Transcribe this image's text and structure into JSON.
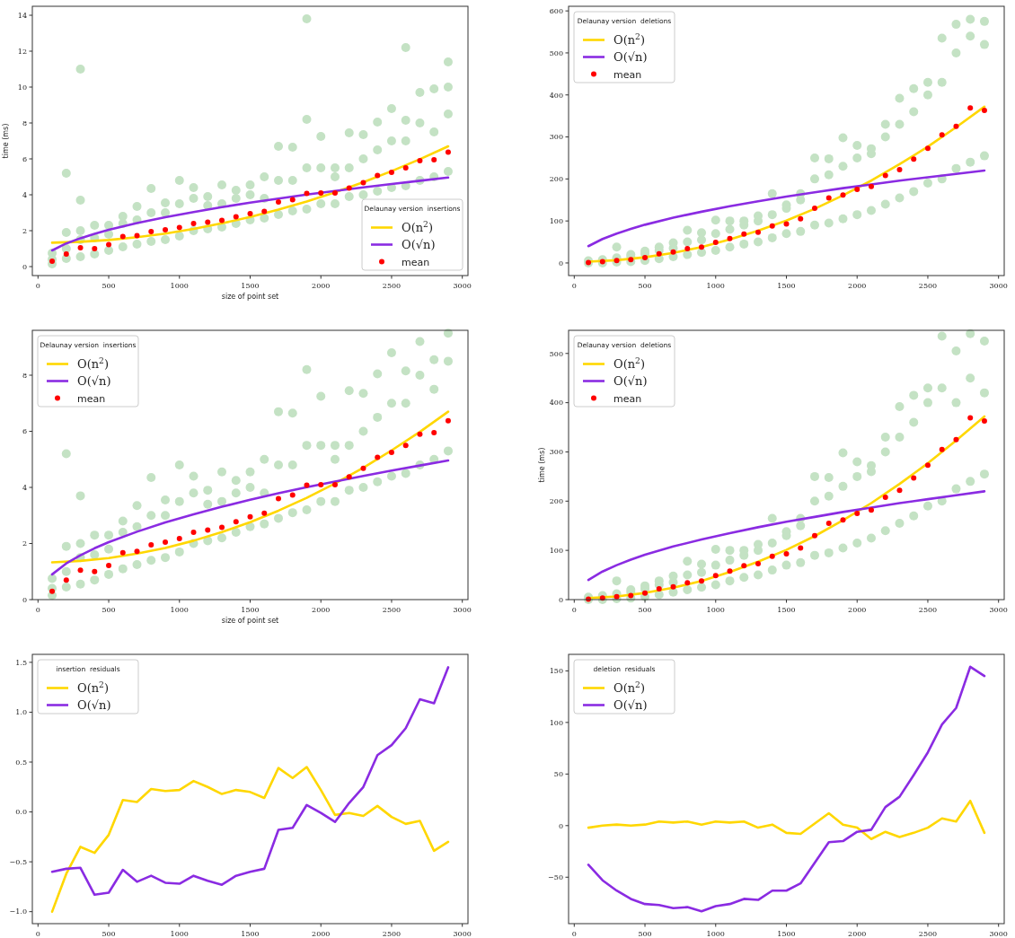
{
  "chart_data": [
    {
      "type": "scatter",
      "ylabel": "time (ms)",
      "xlabel": "size of point set",
      "legend_title": "Delaunay version  insertions",
      "legend": "bottom right",
      "xlim": [
        -40,
        3040
      ],
      "xticks": [
        0,
        500,
        1000,
        1500,
        2000,
        2500,
        3000
      ],
      "ylim": [
        -0.5,
        14.5
      ],
      "yticks": [
        0,
        2,
        4,
        6,
        8,
        10,
        12,
        14
      ],
      "series": [
        {
          "type": "scatter",
          "color": "#c4e2c4",
          "x": [
            100,
            100,
            100,
            200,
            200,
            200,
            200,
            300,
            300,
            300,
            300,
            300,
            400,
            400,
            400,
            500,
            500,
            500,
            600,
            600,
            600,
            700,
            700,
            700,
            800,
            800,
            800,
            900,
            900,
            900,
            1000,
            1000,
            1000,
            1100,
            1100,
            1100,
            1200,
            1200,
            1200,
            1300,
            1300,
            1300,
            1400,
            1400,
            1400,
            1500,
            1500,
            1500,
            1600,
            1600,
            1600,
            1700,
            1700,
            1700,
            1800,
            1800,
            1800,
            1900,
            1900,
            1900,
            1900,
            2000,
            2000,
            2000,
            2100,
            2100,
            2100,
            2200,
            2200,
            2200,
            2300,
            2300,
            2300,
            2400,
            2400,
            2400,
            2500,
            2500,
            2500,
            2600,
            2600,
            2600,
            2600,
            2700,
            2700,
            2700,
            2800,
            2800,
            2800,
            2900,
            2900,
            2900,
            2900
          ],
          "values": [
            0.15,
            0.4,
            0.75,
            0.45,
            1.0,
            1.9,
            5.2,
            0.55,
            1.5,
            2.0,
            3.7,
            11.0,
            0.7,
            1.6,
            2.3,
            0.9,
            1.8,
            2.3,
            1.1,
            2.4,
            2.8,
            1.25,
            2.6,
            3.35,
            1.4,
            3.0,
            4.35,
            1.5,
            3.0,
            3.55,
            1.7,
            3.5,
            4.8,
            2.0,
            3.8,
            4.4,
            2.1,
            3.4,
            3.9,
            2.2,
            3.5,
            4.55,
            2.4,
            3.8,
            4.25,
            2.6,
            4.0,
            4.55,
            2.7,
            3.8,
            5.0,
            2.9,
            4.8,
            6.7,
            3.1,
            4.8,
            6.65,
            3.2,
            5.5,
            8.2,
            13.8,
            3.5,
            5.5,
            7.25,
            3.5,
            5.0,
            5.5,
            3.9,
            5.5,
            7.45,
            4.0,
            6.0,
            7.35,
            4.2,
            6.5,
            8.05,
            4.4,
            7.0,
            8.8,
            4.5,
            7.0,
            8.15,
            12.2,
            4.8,
            8.0,
            9.7,
            5.0,
            7.5,
            9.9,
            5.3,
            8.5,
            10.0,
            11.4
          ]
        },
        {
          "type": "line",
          "name": "O(n$^{2}$)",
          "color": "#ffd700",
          "x": [
            100,
            300,
            500,
            700,
            900,
            1100,
            1300,
            1500,
            1700,
            1900,
            2100,
            2300,
            2500,
            2700,
            2900
          ],
          "values": [
            1.33,
            1.38,
            1.48,
            1.64,
            1.84,
            2.1,
            2.41,
            2.76,
            3.17,
            3.63,
            4.14,
            4.7,
            5.32,
            5.98,
            6.7
          ]
        },
        {
          "type": "line",
          "name": "O(√n)",
          "color": "#8a2be2",
          "x": [
            100,
            200,
            300,
            400,
            500,
            700,
            900,
            1100,
            1300,
            1500,
            1700,
            1900,
            2100,
            2300,
            2500,
            2700,
            2900
          ],
          "values": [
            0.9,
            1.29,
            1.58,
            1.83,
            2.05,
            2.42,
            2.75,
            3.04,
            3.31,
            3.56,
            3.79,
            4.01,
            4.21,
            4.41,
            4.6,
            4.78,
            4.96
          ]
        },
        {
          "type": "scatter",
          "name": "mean",
          "color": "#ff0000",
          "x": [
            100,
            200,
            300,
            400,
            500,
            600,
            700,
            800,
            900,
            1000,
            1100,
            1200,
            1300,
            1400,
            1500,
            1600,
            1700,
            1800,
            1900,
            2000,
            2100,
            2200,
            2300,
            2400,
            2500,
            2600,
            2700,
            2800,
            2900
          ],
          "values": [
            0.3,
            0.7,
            1.05,
            1.0,
            1.22,
            1.67,
            1.72,
            1.95,
            2.05,
            2.18,
            2.4,
            2.48,
            2.58,
            2.78,
            2.95,
            3.08,
            3.6,
            3.73,
            4.08,
            4.1,
            4.1,
            4.38,
            4.68,
            5.07,
            5.25,
            5.5,
            5.9,
            5.95,
            6.38
          ]
        }
      ]
    },
    {
      "type": "scatter",
      "legend_title": "Delaunay version  deletions",
      "legend": "top left",
      "xlim": [
        -40,
        3040
      ],
      "xticks": [
        0,
        500,
        1000,
        1500,
        2000,
        2500,
        3000
      ],
      "ylim": [
        -30,
        611
      ],
      "yticks": [
        0,
        100,
        200,
        300,
        400,
        500,
        600
      ],
      "series": [
        {
          "type": "scatter",
          "color": "#c4e2c4",
          "x": [
            100,
            100,
            200,
            200,
            300,
            300,
            300,
            400,
            400,
            400,
            500,
            500,
            500,
            600,
            600,
            600,
            700,
            700,
            700,
            800,
            800,
            800,
            900,
            900,
            900,
            1000,
            1000,
            1000,
            1100,
            1100,
            1100,
            1200,
            1200,
            1200,
            1300,
            1300,
            1300,
            1400,
            1400,
            1400,
            1500,
            1500,
            1500,
            1600,
            1600,
            1600,
            1700,
            1700,
            1700,
            1800,
            1800,
            1800,
            1900,
            1900,
            1900,
            2000,
            2000,
            2000,
            2100,
            2100,
            2100,
            2200,
            2200,
            2200,
            2300,
            2300,
            2300,
            2400,
            2400,
            2400,
            2500,
            2500,
            2500,
            2600,
            2600,
            2600,
            2700,
            2700,
            2700,
            2800,
            2800,
            2800,
            2900,
            2900,
            2900
          ],
          "values": [
            0,
            5,
            0,
            8,
            2,
            12,
            38,
            3,
            15,
            20,
            6,
            22,
            28,
            10,
            30,
            38,
            15,
            35,
            48,
            20,
            50,
            78,
            25,
            55,
            72,
            30,
            70,
            102,
            38,
            80,
            100,
            45,
            90,
            100,
            50,
            100,
            112,
            60,
            115,
            165,
            70,
            130,
            138,
            75,
            150,
            165,
            90,
            200,
            250,
            95,
            210,
            248,
            105,
            230,
            298,
            115,
            250,
            280,
            125,
            260,
            272,
            140,
            300,
            330,
            155,
            330,
            392,
            170,
            360,
            415,
            190,
            400,
            430,
            200,
            430,
            535,
            225,
            500,
            568,
            240,
            540,
            580,
            255,
            520,
            575
          ]
        },
        {
          "type": "line",
          "name": "O(n$^{2}$)",
          "color": "#ffd700",
          "x": [
            100,
            300,
            500,
            700,
            900,
            1100,
            1300,
            1500,
            1700,
            1900,
            2100,
            2300,
            2500,
            2700,
            2900
          ],
          "values": [
            3,
            6.5,
            13.5,
            24,
            38,
            56,
            77,
            101,
            129,
            161,
            196,
            235,
            277,
            323,
            372
          ]
        },
        {
          "type": "line",
          "name": "O(√n)",
          "color": "#8a2be2",
          "x": [
            100,
            200,
            300,
            400,
            500,
            700,
            900,
            1100,
            1300,
            1500,
            1700,
            1900,
            2100,
            2300,
            2500,
            2700,
            2900
          ],
          "values": [
            40,
            57,
            70,
            81,
            91,
            108,
            122,
            135,
            147,
            158,
            168,
            178,
            187,
            196,
            204,
            212,
            220
          ]
        },
        {
          "type": "scatter",
          "name": "mean",
          "color": "#ff0000",
          "x": [
            100,
            200,
            300,
            400,
            500,
            600,
            700,
            800,
            900,
            1000,
            1100,
            1200,
            1300,
            1400,
            1500,
            1600,
            1700,
            1800,
            1900,
            2000,
            2100,
            2200,
            2300,
            2400,
            2500,
            2600,
            2700,
            2800,
            2900
          ],
          "values": [
            1,
            3,
            6,
            8,
            13,
            22,
            26,
            34,
            38,
            49,
            58,
            69,
            73,
            88,
            93,
            105,
            130,
            155,
            162,
            175,
            182,
            208,
            222,
            247,
            273,
            305,
            325,
            369,
            363
          ]
        }
      ]
    },
    {
      "type": "scatter",
      "xlabel": "size of point set",
      "legend_title": "Delaunay version  insertions",
      "legend": "top left",
      "xlim": [
        -40,
        3040
      ],
      "xticks": [
        0,
        500,
        1000,
        1500,
        2000,
        2500,
        3000
      ],
      "ylim": [
        0,
        9.6
      ],
      "yticks": [
        0,
        2,
        4,
        6,
        8
      ],
      "series": [
        {
          "type": "scatter",
          "color": "#c4e2c4",
          "x": [
            100,
            100,
            100,
            200,
            200,
            200,
            200,
            300,
            300,
            300,
            300,
            400,
            400,
            400,
            500,
            500,
            500,
            600,
            600,
            600,
            700,
            700,
            700,
            800,
            800,
            800,
            900,
            900,
            900,
            1000,
            1000,
            1000,
            1100,
            1100,
            1100,
            1200,
            1200,
            1200,
            1300,
            1300,
            1300,
            1400,
            1400,
            1400,
            1500,
            1500,
            1500,
            1600,
            1600,
            1600,
            1700,
            1700,
            1700,
            1800,
            1800,
            1800,
            1900,
            1900,
            1900,
            2000,
            2000,
            2000,
            2100,
            2100,
            2100,
            2200,
            2200,
            2200,
            2300,
            2300,
            2300,
            2400,
            2400,
            2400,
            2500,
            2500,
            2500,
            2600,
            2600,
            2600,
            2700,
            2700,
            2700,
            2800,
            2800,
            2800,
            2900,
            2900,
            2900
          ],
          "values": [
            0.15,
            0.4,
            0.75,
            0.45,
            1.0,
            1.9,
            5.2,
            0.55,
            1.5,
            2.0,
            3.7,
            0.7,
            1.6,
            2.3,
            0.9,
            1.8,
            2.3,
            1.1,
            2.4,
            2.8,
            1.25,
            2.6,
            3.35,
            1.4,
            3.0,
            4.35,
            1.5,
            3.0,
            3.55,
            1.7,
            3.5,
            4.8,
            2.0,
            3.8,
            4.4,
            2.1,
            3.4,
            3.9,
            2.2,
            3.5,
            4.55,
            2.4,
            3.8,
            4.25,
            2.6,
            4.0,
            4.55,
            2.7,
            3.8,
            5.0,
            2.9,
            4.8,
            6.7,
            3.1,
            4.8,
            6.65,
            3.2,
            5.5,
            8.2,
            3.5,
            5.5,
            7.25,
            3.5,
            5.0,
            5.5,
            3.9,
            5.5,
            7.45,
            4.0,
            6.0,
            7.35,
            4.2,
            6.5,
            8.05,
            4.4,
            7.0,
            8.8,
            4.5,
            7.0,
            8.15,
            4.8,
            8.0,
            9.2,
            5.0,
            7.5,
            8.55,
            5.3,
            8.5,
            9.5
          ]
        },
        {
          "type": "line",
          "name": "O(n$^{2}$)",
          "color": "#ffd700",
          "x": [
            100,
            300,
            500,
            700,
            900,
            1100,
            1300,
            1500,
            1700,
            1900,
            2100,
            2300,
            2500,
            2700,
            2900
          ],
          "values": [
            1.33,
            1.38,
            1.48,
            1.64,
            1.84,
            2.1,
            2.41,
            2.76,
            3.17,
            3.63,
            4.14,
            4.7,
            5.32,
            5.98,
            6.7
          ]
        },
        {
          "type": "line",
          "name": "O(√n)",
          "color": "#8a2be2",
          "x": [
            100,
            200,
            300,
            400,
            500,
            700,
            900,
            1100,
            1300,
            1500,
            1700,
            1900,
            2100,
            2300,
            2500,
            2700,
            2900
          ],
          "values": [
            0.9,
            1.29,
            1.58,
            1.83,
            2.05,
            2.42,
            2.75,
            3.04,
            3.31,
            3.56,
            3.79,
            4.01,
            4.21,
            4.41,
            4.6,
            4.78,
            4.96
          ]
        },
        {
          "type": "scatter",
          "name": "mean",
          "color": "#ff0000",
          "x": [
            100,
            200,
            300,
            400,
            500,
            600,
            700,
            800,
            900,
            1000,
            1100,
            1200,
            1300,
            1400,
            1500,
            1600,
            1700,
            1800,
            1900,
            2000,
            2100,
            2200,
            2300,
            2400,
            2500,
            2600,
            2700,
            2800,
            2900
          ],
          "values": [
            0.3,
            0.7,
            1.05,
            1.0,
            1.22,
            1.67,
            1.72,
            1.95,
            2.05,
            2.18,
            2.4,
            2.48,
            2.58,
            2.78,
            2.95,
            3.08,
            3.6,
            3.73,
            4.08,
            4.1,
            4.1,
            4.38,
            4.68,
            5.07,
            5.25,
            5.5,
            5.9,
            5.95,
            6.38
          ]
        }
      ]
    },
    {
      "type": "scatter",
      "ylabel": "time (ms)",
      "legend_title": "Delaunay version  deletions",
      "legend": "top left",
      "xlim": [
        -40,
        3040
      ],
      "xticks": [
        0,
        500,
        1000,
        1500,
        2000,
        2500,
        3000
      ],
      "ylim": [
        0,
        547
      ],
      "yticks": [
        0,
        100,
        200,
        300,
        400,
        500
      ],
      "series": [
        {
          "type": "scatter",
          "color": "#c4e2c4",
          "x": [
            100,
            100,
            200,
            200,
            300,
            300,
            300,
            400,
            400,
            400,
            500,
            500,
            500,
            600,
            600,
            600,
            700,
            700,
            700,
            800,
            800,
            800,
            900,
            900,
            900,
            1000,
            1000,
            1000,
            1100,
            1100,
            1100,
            1200,
            1200,
            1200,
            1300,
            1300,
            1300,
            1400,
            1400,
            1400,
            1500,
            1500,
            1500,
            1600,
            1600,
            1600,
            1700,
            1700,
            1700,
            1800,
            1800,
            1800,
            1900,
            1900,
            1900,
            2000,
            2000,
            2000,
            2100,
            2100,
            2100,
            2200,
            2200,
            2200,
            2300,
            2300,
            2300,
            2400,
            2400,
            2400,
            2500,
            2500,
            2500,
            2600,
            2600,
            2600,
            2700,
            2700,
            2700,
            2800,
            2800,
            2800,
            2900,
            2900,
            2900
          ],
          "values": [
            0,
            5,
            0,
            8,
            2,
            12,
            38,
            3,
            15,
            20,
            6,
            22,
            28,
            10,
            30,
            38,
            15,
            35,
            48,
            20,
            50,
            78,
            25,
            55,
            72,
            30,
            70,
            102,
            38,
            80,
            100,
            45,
            90,
            100,
            50,
            100,
            112,
            60,
            115,
            165,
            70,
            130,
            138,
            75,
            150,
            165,
            90,
            200,
            250,
            95,
            210,
            248,
            105,
            230,
            298,
            115,
            250,
            280,
            125,
            260,
            272,
            140,
            300,
            330,
            155,
            330,
            392,
            170,
            360,
            415,
            190,
            400,
            430,
            200,
            430,
            535,
            225,
            400,
            505,
            240,
            450,
            540,
            255,
            420,
            525
          ]
        },
        {
          "type": "line",
          "name": "O(n$^{2}$)",
          "color": "#ffd700",
          "x": [
            100,
            300,
            500,
            700,
            900,
            1100,
            1300,
            1500,
            1700,
            1900,
            2100,
            2300,
            2500,
            2700,
            2900
          ],
          "values": [
            3,
            6.5,
            13.5,
            24,
            38,
            56,
            77,
            101,
            129,
            161,
            196,
            235,
            277,
            323,
            372
          ]
        },
        {
          "type": "line",
          "name": "O(√n)",
          "color": "#8a2be2",
          "x": [
            100,
            200,
            300,
            400,
            500,
            700,
            900,
            1100,
            1300,
            1500,
            1700,
            1900,
            2100,
            2300,
            2500,
            2700,
            2900
          ],
          "values": [
            40,
            57,
            70,
            81,
            91,
            108,
            122,
            135,
            147,
            158,
            168,
            178,
            187,
            196,
            204,
            212,
            220
          ]
        },
        {
          "type": "scatter",
          "name": "mean",
          "color": "#ff0000",
          "x": [
            100,
            200,
            300,
            400,
            500,
            600,
            700,
            800,
            900,
            1000,
            1100,
            1200,
            1300,
            1400,
            1500,
            1600,
            1700,
            1800,
            1900,
            2000,
            2100,
            2200,
            2300,
            2400,
            2500,
            2600,
            2700,
            2800,
            2900
          ],
          "values": [
            1,
            3,
            6,
            8,
            13,
            22,
            26,
            34,
            38,
            49,
            58,
            69,
            73,
            88,
            93,
            105,
            130,
            155,
            162,
            175,
            182,
            208,
            222,
            247,
            273,
            305,
            325,
            369,
            363
          ]
        }
      ]
    },
    {
      "type": "line",
      "legend_title": "insertion  residuals",
      "legend": "top left",
      "x": [
        100,
        200,
        300,
        400,
        500,
        600,
        700,
        800,
        900,
        1000,
        1100,
        1200,
        1300,
        1400,
        1500,
        1600,
        1700,
        1800,
        1900,
        2000,
        2100,
        2200,
        2300,
        2400,
        2500,
        2600,
        2700,
        2800,
        2900
      ],
      "xlim": [
        -40,
        3040
      ],
      "xticks": [
        0,
        500,
        1000,
        1500,
        2000,
        2500,
        3000
      ],
      "ylim": [
        -1.12,
        1.58
      ],
      "yticks": [
        {
          "value": -1,
          "label": "−1.0"
        },
        {
          "value": -0.5,
          "label": "−0.5"
        },
        {
          "value": 0,
          "label": "0.0"
        },
        {
          "value": 0.5,
          "label": "0.5"
        },
        {
          "value": 1,
          "label": "1.0"
        },
        {
          "value": 1.5,
          "label": "1.5"
        }
      ],
      "series": [
        {
          "name": "O(n$^{2}$)",
          "color": "#ffd700",
          "values": [
            -1.0,
            -0.62,
            -0.35,
            -0.41,
            -0.23,
            0.12,
            0.1,
            0.23,
            0.21,
            0.22,
            0.31,
            0.25,
            0.18,
            0.22,
            0.2,
            0.14,
            0.44,
            0.34,
            0.45,
            0.22,
            -0.03,
            -0.01,
            -0.04,
            0.06,
            -0.05,
            -0.12,
            -0.09,
            -0.39,
            -0.3
          ]
        },
        {
          "name": "O(√n)",
          "color": "#8a2be2",
          "values": [
            -0.6,
            -0.57,
            -0.56,
            -0.83,
            -0.81,
            -0.58,
            -0.7,
            -0.64,
            -0.71,
            -0.72,
            -0.64,
            -0.69,
            -0.73,
            -0.64,
            -0.6,
            -0.57,
            -0.18,
            -0.16,
            0.07,
            -0.01,
            -0.1,
            0.09,
            0.25,
            0.57,
            0.67,
            0.84,
            1.13,
            1.09,
            1.45
          ]
        }
      ]
    },
    {
      "type": "line",
      "legend_title": "deletion  residuals",
      "legend": "top left",
      "x": [
        100,
        200,
        300,
        400,
        500,
        600,
        700,
        800,
        900,
        1000,
        1100,
        1200,
        1300,
        1400,
        1500,
        1600,
        1700,
        1800,
        1900,
        2000,
        2100,
        2200,
        2300,
        2400,
        2500,
        2600,
        2700,
        2800,
        2900
      ],
      "xlim": [
        -40,
        3040
      ],
      "xticks": [
        0,
        500,
        1000,
        1500,
        2000,
        2500,
        3000
      ],
      "ylim": [
        -95,
        166
      ],
      "yticks": [
        {
          "value": -50,
          "label": "−50"
        },
        0,
        50,
        100,
        150
      ],
      "series": [
        {
          "name": "O(n$^{2}$)",
          "color": "#ffd700",
          "values": [
            -2,
            0,
            1,
            0,
            1,
            4,
            3,
            4,
            1,
            4,
            3,
            4,
            -2,
            1,
            -7,
            -8,
            2,
            12,
            1,
            -2,
            -13,
            -6,
            -11,
            -7,
            -2,
            7,
            4,
            24,
            -7
          ]
        },
        {
          "name": "O(√n)",
          "color": "#8a2be2",
          "values": [
            -38,
            -53,
            -63,
            -71,
            -76,
            -77,
            -80,
            -79,
            -83,
            -78,
            -76,
            -71,
            -72,
            -63,
            -63,
            -56,
            -36,
            -16,
            -15,
            -6,
            -4,
            18,
            28,
            49,
            71,
            98,
            114,
            154,
            145
          ]
        }
      ]
    }
  ]
}
